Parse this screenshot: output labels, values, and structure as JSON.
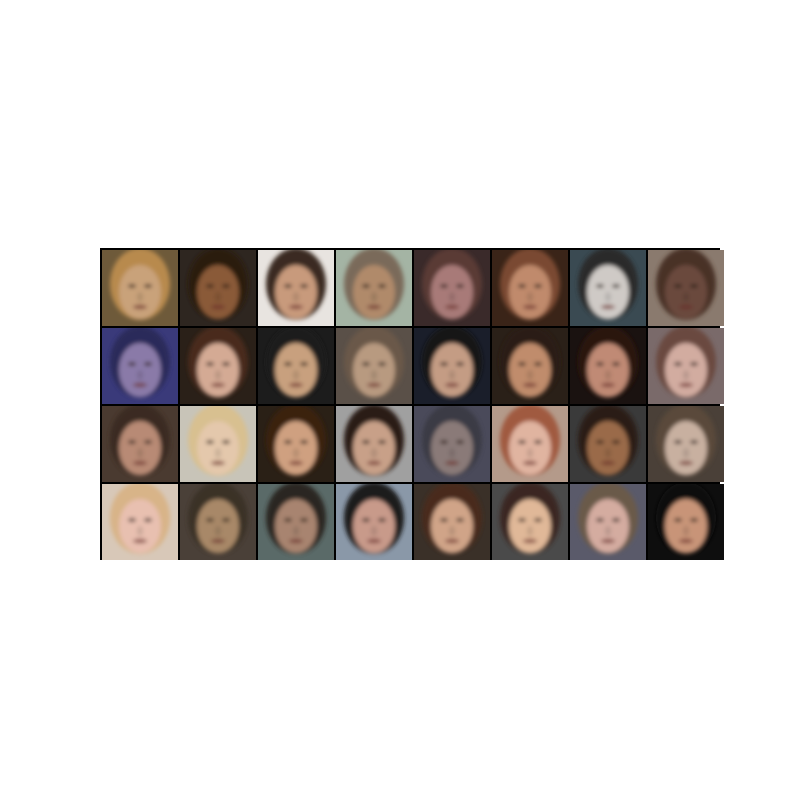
{
  "figure": {
    "rows": 4,
    "columns": 8,
    "tiles": [
      {
        "bg": "#6e5a3a",
        "skin": "#c9a27a",
        "hair": "#b88a4e"
      },
      {
        "bg": "#2e2620",
        "skin": "#8a5a38",
        "hair": "#2a1a10"
      },
      {
        "bg": "#e8e4e0",
        "skin": "#c89a7c",
        "hair": "#3a2a20"
      },
      {
        "bg": "#a4b4a4",
        "skin": "#b08a6a",
        "hair": "#7a6a5a"
      },
      {
        "bg": "#3a2a2a",
        "skin": "#a87a78",
        "hair": "#5a3a34"
      },
      {
        "bg": "#3a2418",
        "skin": "#c08a6c",
        "hair": "#7a4a30"
      },
      {
        "bg": "#3a4a52",
        "skin": "#cfcac6",
        "hair": "#2a2a2a"
      },
      {
        "bg": "#8a7a6e",
        "skin": "#6a4a3c",
        "hair": "#4a3228"
      },
      {
        "bg": "#3a3a7a",
        "skin": "#8a7aa8",
        "hair": "#2a2a5a"
      },
      {
        "bg": "#2a2018",
        "skin": "#d4aa94",
        "hair": "#4a2a1a"
      },
      {
        "bg": "#1c1c1c",
        "skin": "#c8a07e",
        "hair": "#1a1a1a"
      },
      {
        "bg": "#5a5048",
        "skin": "#b89a80",
        "hair": "#6a5848"
      },
      {
        "bg": "#1a1e2a",
        "skin": "#c49c84",
        "hair": "#151515"
      },
      {
        "bg": "#2a2018",
        "skin": "#c08c6c",
        "hair": "#2a1a12"
      },
      {
        "bg": "#1a1210",
        "skin": "#c08a74",
        "hair": "#2a1410"
      },
      {
        "bg": "#7a6a6a",
        "skin": "#d2aca0",
        "hair": "#6a4a40"
      },
      {
        "bg": "#4a3a30",
        "skin": "#b88a74",
        "hair": "#3a2a20"
      },
      {
        "bg": "#c8c4b8",
        "skin": "#e4c8ac",
        "hair": "#d8c090"
      },
      {
        "bg": "#2a2016",
        "skin": "#cfa080",
        "hair": "#3a2010"
      },
      {
        "bg": "#a0a0a0",
        "skin": "#c8a088",
        "hair": "#2a1a14"
      },
      {
        "bg": "#4a4a5a",
        "skin": "#8a7a78",
        "hair": "#3a3a44"
      },
      {
        "bg": "#b49a8a",
        "skin": "#e0b4a0",
        "hair": "#a05a40"
      },
      {
        "bg": "#3a3a3a",
        "skin": "#9a6a48",
        "hair": "#2a1e18"
      },
      {
        "bg": "#4a4038",
        "skin": "#c8b0a0",
        "hair": "#5a4a3a"
      },
      {
        "bg": "#d8c8b8",
        "skin": "#e8c0b0",
        "hair": "#d8b488"
      },
      {
        "bg": "#4a4038",
        "skin": "#a88868",
        "hair": "#3a3028"
      },
      {
        "bg": "#5a6a68",
        "skin": "#a88470",
        "hair": "#2a2620"
      },
      {
        "bg": "#8a98a8",
        "skin": "#c89a8a",
        "hair": "#1e1a1a"
      },
      {
        "bg": "#3a3028",
        "skin": "#d0a488",
        "hair": "#4a2a1a"
      },
      {
        "bg": "#4a4a4a",
        "skin": "#e0b898",
        "hair": "#3a2820"
      },
      {
        "bg": "#5a5a6a",
        "skin": "#d4aca0",
        "hair": "#6a5a4a"
      },
      {
        "bg": "#0e0e0e",
        "skin": "#c89478",
        "hair": "#0a0a0a"
      }
    ]
  }
}
